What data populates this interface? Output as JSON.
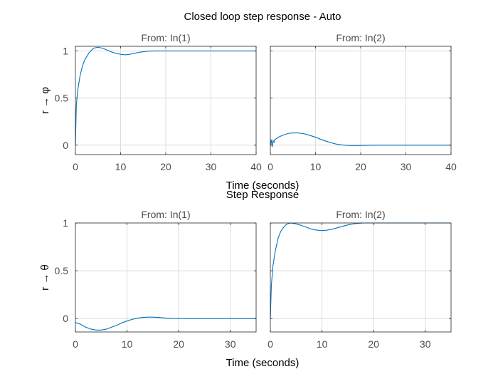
{
  "figure": {
    "title": "Closed loop step response - Auto",
    "row2_title": "Step Response"
  },
  "colors": {
    "line": "#0072BD",
    "grid": "#dcdcdc",
    "axis": "#262626",
    "background": "#ffffff"
  },
  "chart_data": [
    {
      "type": "line",
      "row": 0,
      "col": 0,
      "title": "From: In(1)",
      "ylabel": "r → φ",
      "xlabel": "",
      "xlim": [
        0,
        40
      ],
      "ylim": [
        -0.1,
        1.05
      ],
      "xticks": [
        0,
        10,
        20,
        30,
        40
      ],
      "xticklabels": [
        "0",
        "10",
        "20",
        "30",
        "40"
      ],
      "yticks": [
        0,
        0.5,
        1
      ],
      "yticklabels": [
        "0",
        "0.5",
        "1"
      ],
      "grid": true,
      "series": [
        {
          "x": [
            0,
            0.2,
            0.5,
            1,
            1.5,
            2,
            3,
            4,
            5,
            6,
            7,
            8,
            9,
            10,
            11,
            12,
            13,
            14,
            15,
            16,
            18,
            20,
            22,
            25,
            30,
            35,
            40
          ],
          "y": [
            0,
            0.42,
            0.58,
            0.73,
            0.83,
            0.9,
            0.98,
            1.03,
            1.04,
            1.03,
            1.01,
            0.99,
            0.975,
            0.965,
            0.96,
            0.965,
            0.975,
            0.985,
            0.993,
            0.998,
            1.0,
            1.0,
            1.0,
            1.0,
            1.0,
            1.0,
            1.0
          ]
        }
      ]
    },
    {
      "type": "line",
      "row": 0,
      "col": 1,
      "title": "From: In(2)",
      "ylabel": "",
      "xlabel": "Time (seconds)",
      "xlim": [
        0,
        40
      ],
      "ylim": [
        -0.1,
        1.05
      ],
      "xticks": [
        0,
        10,
        20,
        30,
        40
      ],
      "xticklabels": [
        "0",
        "10",
        "20",
        "30",
        "40"
      ],
      "yticks": [
        0,
        0.5,
        1
      ],
      "yticklabels": [],
      "grid": true,
      "series": [
        {
          "x": [
            0,
            0.2,
            0.4,
            0.6,
            0.8,
            1,
            2,
            3,
            4,
            5,
            6,
            7,
            8,
            9,
            10,
            11,
            12,
            13,
            14,
            15,
            16,
            17,
            18,
            20,
            22,
            25,
            30,
            35,
            40
          ],
          "y": [
            0,
            0.06,
            -0.02,
            0.05,
            0.03,
            0.06,
            0.09,
            0.11,
            0.125,
            0.13,
            0.13,
            0.125,
            0.115,
            0.1,
            0.085,
            0.065,
            0.048,
            0.032,
            0.018,
            0.008,
            0.002,
            -0.002,
            -0.004,
            -0.003,
            -0.001,
            0.0,
            0.0,
            0.0,
            0.0
          ]
        }
      ]
    },
    {
      "type": "line",
      "row": 1,
      "col": 0,
      "title": "From: In(1)",
      "ylabel": "r → θ",
      "xlabel": "",
      "xlim": [
        0,
        35
      ],
      "ylim": [
        -0.14,
        1.0
      ],
      "xticks": [
        0,
        10,
        20,
        30
      ],
      "xticklabels": [
        "0",
        "10",
        "20",
        "30"
      ],
      "yticks": [
        0,
        0.5,
        1
      ],
      "yticklabels": [
        "0",
        "0.5",
        "1"
      ],
      "grid": true,
      "series": [
        {
          "x": [
            0,
            1,
            2,
            3,
            4,
            5,
            6,
            7,
            8,
            9,
            10,
            11,
            12,
            13,
            14,
            15,
            16,
            17,
            18,
            19,
            20,
            22,
            25,
            30,
            35
          ],
          "y": [
            -0.04,
            -0.06,
            -0.09,
            -0.11,
            -0.12,
            -0.12,
            -0.11,
            -0.09,
            -0.07,
            -0.045,
            -0.025,
            -0.008,
            0.005,
            0.012,
            0.015,
            0.015,
            0.012,
            0.008,
            0.004,
            0.001,
            0.0,
            -0.001,
            0.0,
            0.0,
            0.0
          ]
        }
      ]
    },
    {
      "type": "line",
      "row": 1,
      "col": 1,
      "title": "From: In(2)",
      "ylabel": "",
      "xlabel": "Time (seconds)",
      "xlim": [
        0,
        35
      ],
      "ylim": [
        -0.14,
        1.0
      ],
      "xticks": [
        0,
        10,
        20,
        30
      ],
      "xticklabels": [
        "0",
        "10",
        "20",
        "30"
      ],
      "yticks": [
        0,
        0.5,
        1
      ],
      "yticklabels": [],
      "grid": true,
      "series": [
        {
          "x": [
            0,
            0.2,
            0.5,
            1,
            1.5,
            2,
            2.5,
            3,
            3.5,
            4,
            5,
            6,
            7,
            8,
            9,
            10,
            11,
            12,
            13,
            14,
            15,
            16,
            17,
            18,
            20,
            25,
            30,
            35
          ],
          "y": [
            0,
            0.35,
            0.55,
            0.72,
            0.84,
            0.91,
            0.95,
            0.98,
            0.995,
            1.0,
            0.99,
            0.975,
            0.955,
            0.935,
            0.925,
            0.92,
            0.925,
            0.935,
            0.95,
            0.965,
            0.98,
            0.99,
            0.997,
            1.0,
            1.0,
            1.0,
            1.0,
            1.0
          ]
        }
      ]
    }
  ]
}
